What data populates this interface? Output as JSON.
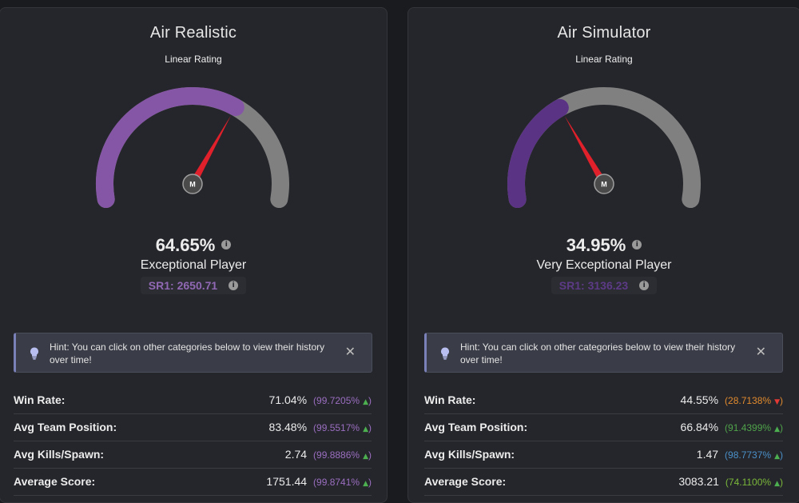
{
  "cards": [
    {
      "title": "Air Realistic",
      "gauge_label": "Linear Rating",
      "gauge_value": 0.6465,
      "gauge_color": "#8656a6",
      "center_label": "M",
      "percent": "64.65%",
      "rank": "Exceptional Player",
      "sr": "SR1: 2650.71",
      "sr_color": "#9068b3",
      "hint": "Hint: You can click on other categories below to view their history over time!",
      "stats": [
        {
          "label": "Win Rate:",
          "value": "71.04%",
          "pct": "(99.7205%",
          "trend": "up",
          "color": "#9a6ec0"
        },
        {
          "label": "Avg Team Position:",
          "value": "83.48%",
          "pct": "(99.5517%",
          "trend": "up",
          "color": "#9a6ec0"
        },
        {
          "label": "Avg Kills/Spawn:",
          "value": "2.74",
          "pct": "(99.8886%",
          "trend": "up",
          "color": "#9a6ec0"
        },
        {
          "label": "Average Score:",
          "value": "1751.44",
          "pct": "(99.8741%",
          "trend": "up",
          "color": "#9a6ec0"
        }
      ]
    },
    {
      "title": "Air Simulator",
      "gauge_label": "Linear Rating",
      "gauge_value": 0.3495,
      "gauge_color": "#5b3384",
      "center_label": "M",
      "percent": "34.95%",
      "rank": "Very Exceptional Player",
      "sr": "SR1: 3136.23",
      "sr_color": "#5c3a86",
      "hint": "Hint: You can click on other categories below to view their history over time!",
      "stats": [
        {
          "label": "Win Rate:",
          "value": "44.55%",
          "pct": "(28.7138%",
          "trend": "down",
          "color": "#e08a2e"
        },
        {
          "label": "Avg Team Position:",
          "value": "66.84%",
          "pct": "(91.4399%",
          "trend": "up",
          "color": "#4fa34a"
        },
        {
          "label": "Avg Kills/Spawn:",
          "value": "1.47",
          "pct": "(98.7737%",
          "trend": "up",
          "color": "#4a90c9"
        },
        {
          "label": "Average Score:",
          "value": "3083.21",
          "pct": "(74.1100%",
          "trend": "up",
          "color": "#7bb83a"
        }
      ]
    }
  ],
  "colors": {
    "track": "#808080",
    "needle": "#e0202a",
    "arrow_up": "#4caf50",
    "arrow_down": "#e53935"
  },
  "icons": {
    "info": "info-icon",
    "hint": "lightbulb-icon",
    "close": "close-icon"
  }
}
